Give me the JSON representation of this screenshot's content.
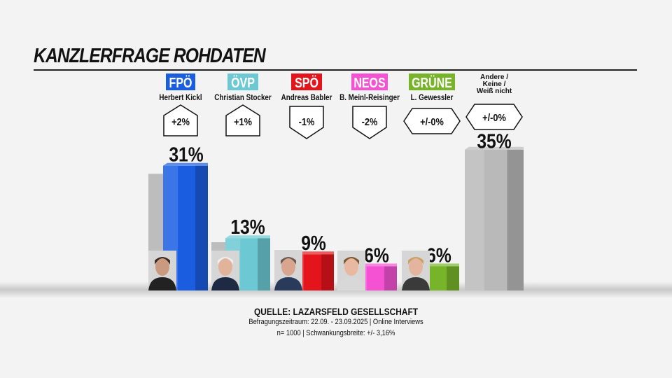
{
  "header": {
    "title": "KANZLERFRAGE ROHDATEN"
  },
  "chart_data": {
    "type": "bar",
    "title": "KANZLERFRAGE ROHDATEN",
    "categories": [
      "FPÖ",
      "ÖVP",
      "SPÖ",
      "NEOS",
      "GRÜNE",
      "Andere / Keine / Weiß nicht"
    ],
    "candidates": [
      "Herbert Kickl",
      "Christian Stocker",
      "Andreas Babler",
      "B. Meinl-Reisinger",
      "L. Gewessler",
      ""
    ],
    "values": [
      31,
      13,
      9,
      6,
      6,
      35
    ],
    "value_labels": [
      "31%",
      "13%",
      "9%",
      "6%",
      "6%",
      "35%"
    ],
    "changes": [
      "+2%",
      "+1%",
      "-1%",
      "-2%",
      "+/-0%",
      "+/-0%"
    ],
    "previous_values": [
      29,
      12,
      10,
      8,
      6,
      35
    ],
    "colors": [
      "#1a5de0",
      "#6cc9d3",
      "#e3141b",
      "#f452d3",
      "#78b42a",
      "#b9b9b9"
    ],
    "ylim": [
      0,
      36
    ],
    "grid": false
  },
  "source": {
    "title": "QUELLE: LAZARSFELD GESELLSCHAFT",
    "line1": "Befragungszeitraum: 22.09. - 23.09.2025 | Online Interviews",
    "line2": "n= 1000 | Schwankungsbreite: +/- 3,16%"
  }
}
